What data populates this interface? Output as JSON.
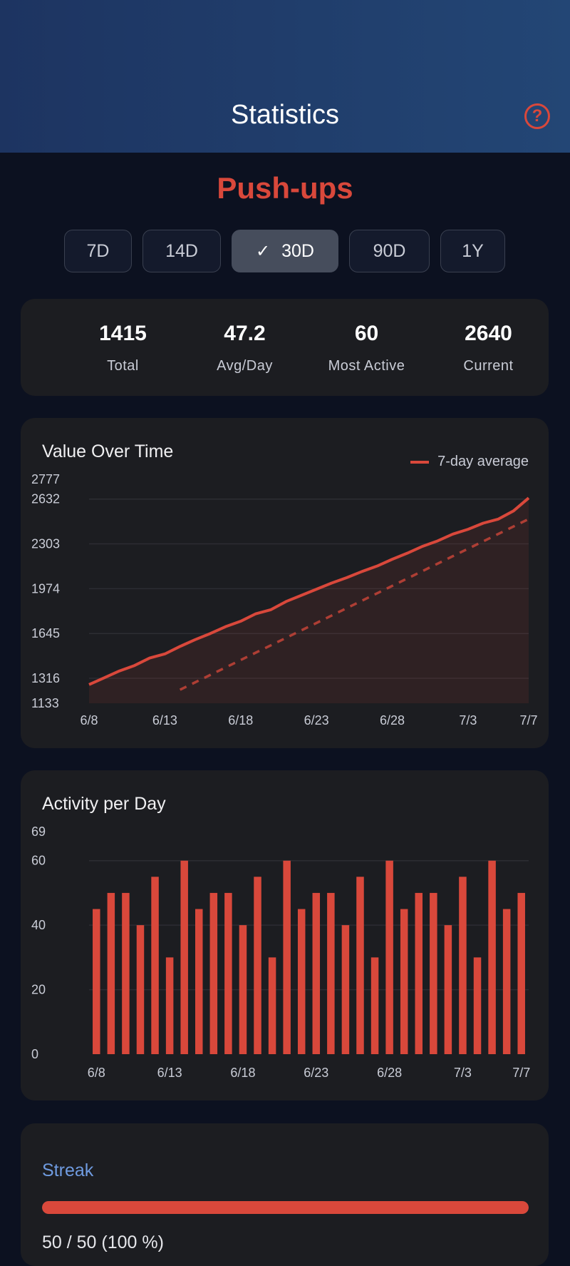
{
  "header": {
    "title": "Statistics",
    "help_icon": "question-circle-icon"
  },
  "exercise": {
    "name": "Push-ups"
  },
  "ranges": [
    {
      "label": "7D",
      "selected": false
    },
    {
      "label": "14D",
      "selected": false
    },
    {
      "label": "30D",
      "selected": true
    },
    {
      "label": "90D",
      "selected": false
    },
    {
      "label": "1Y",
      "selected": false
    }
  ],
  "stats": [
    {
      "value": "1415",
      "label": "Total"
    },
    {
      "value": "47.2",
      "label": "Avg/Day"
    },
    {
      "value": "60",
      "label": "Most Active"
    },
    {
      "value": "2640",
      "label": "Current"
    }
  ],
  "colors": {
    "accent": "#d9483b",
    "streak_title": "#6f9be0",
    "card_bg": "#1c1d21"
  },
  "line_card": {
    "title": "Value Over Time",
    "legend": "7-day average"
  },
  "bar_card": {
    "title": "Activity per Day"
  },
  "streak": {
    "title": "Streak",
    "text": "50 / 50  (100 %)",
    "progress": 1.0
  },
  "chart_data": [
    {
      "type": "line",
      "title": "Value Over Time",
      "x_tick_labels": [
        "6/8",
        "6/13",
        "6/18",
        "6/23",
        "6/28",
        "7/3",
        "7/7"
      ],
      "y_tick_labels": [
        "2777",
        "2632",
        "2303",
        "1974",
        "1645",
        "1316",
        "1133"
      ],
      "ylim": [
        1133,
        2777
      ],
      "grid": true,
      "legend_position": "top-right",
      "series": [
        {
          "name": "value",
          "x": [
            "6/8",
            "6/9",
            "6/10",
            "6/11",
            "6/12",
            "6/13",
            "6/14",
            "6/15",
            "6/16",
            "6/17",
            "6/18",
            "6/19",
            "6/20",
            "6/21",
            "6/22",
            "6/23",
            "6/24",
            "6/25",
            "6/26",
            "6/27",
            "6/28",
            "6/29",
            "6/30",
            "7/1",
            "7/2",
            "7/3",
            "7/4",
            "7/5",
            "7/6",
            "7/7"
          ],
          "y": [
            1270,
            1320,
            1370,
            1410,
            1465,
            1495,
            1550,
            1600,
            1645,
            1695,
            1735,
            1790,
            1820,
            1880,
            1925,
            1970,
            2015,
            2055,
            2100,
            2140,
            2190,
            2235,
            2285,
            2325,
            2375,
            2410,
            2455,
            2485,
            2545,
            2640
          ]
        },
        {
          "name": "7-day average",
          "x": [
            "6/14",
            "7/7"
          ],
          "y": [
            1232,
            2485
          ]
        }
      ]
    },
    {
      "type": "bar",
      "title": "Activity per Day",
      "x_tick_labels": [
        "6/8",
        "6/13",
        "6/18",
        "6/23",
        "6/28",
        "7/3",
        "7/7"
      ],
      "y_tick_labels": [
        "69",
        "60",
        "40",
        "20",
        "0"
      ],
      "ylim": [
        0,
        69
      ],
      "grid": true,
      "values": [
        45,
        50,
        50,
        40,
        55,
        30,
        60,
        45,
        50,
        50,
        40,
        55,
        30,
        60,
        45,
        50,
        50,
        40,
        55,
        30,
        60,
        45,
        50,
        50,
        40,
        55,
        30,
        60,
        45,
        50
      ]
    }
  ]
}
